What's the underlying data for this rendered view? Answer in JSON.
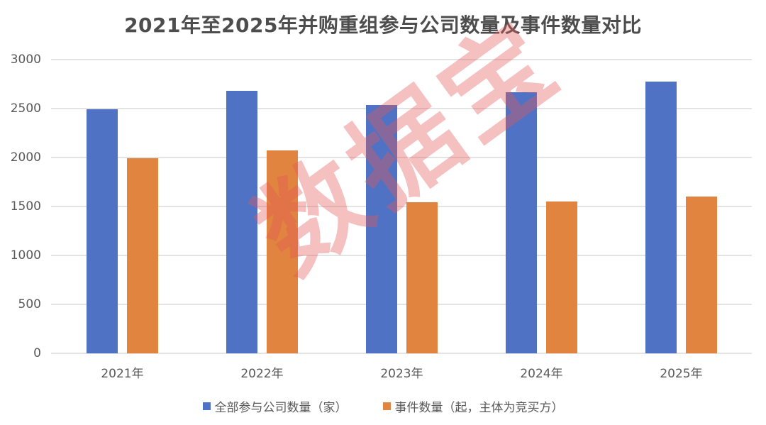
{
  "chart_data": {
    "type": "bar",
    "title": "2021年至2025年并购重组参与公司数量及事件数量对比",
    "xlabel": "",
    "ylabel": "",
    "categories": [
      "2021年",
      "2022年",
      "2023年",
      "2024年",
      "2025年"
    ],
    "series": [
      {
        "name": "全部参与公司数量（家）",
        "color": "#4f72c4",
        "values": [
          2495,
          2680,
          2535,
          2670,
          2775
        ]
      },
      {
        "name": "事件数量（起，主体为竞买方）",
        "color": "#e0843f",
        "values": [
          1995,
          2075,
          1540,
          1550,
          1605
        ]
      }
    ],
    "ylim": [
      0,
      3000
    ],
    "yticks": [
      0,
      500,
      1000,
      1500,
      2000,
      2500,
      3000
    ],
    "grid": true,
    "legend_position": "bottom"
  },
  "title": "2021年至2025年并购重组参与公司数量及事件数量对比",
  "yaxis": {
    "ticks": [
      "0",
      "500",
      "1000",
      "1500",
      "2000",
      "2500",
      "3000"
    ]
  },
  "xaxis": {
    "labels": [
      "2021年",
      "2022年",
      "2023年",
      "2024年",
      "2025年"
    ]
  },
  "legend": {
    "items": [
      {
        "label": "全部参与公司数量（家）",
        "color": "#4f72c4"
      },
      {
        "label": "事件数量（起，主体为竞买方）",
        "color": "#e0843f"
      }
    ]
  },
  "watermark": {
    "text": "数据宝"
  }
}
